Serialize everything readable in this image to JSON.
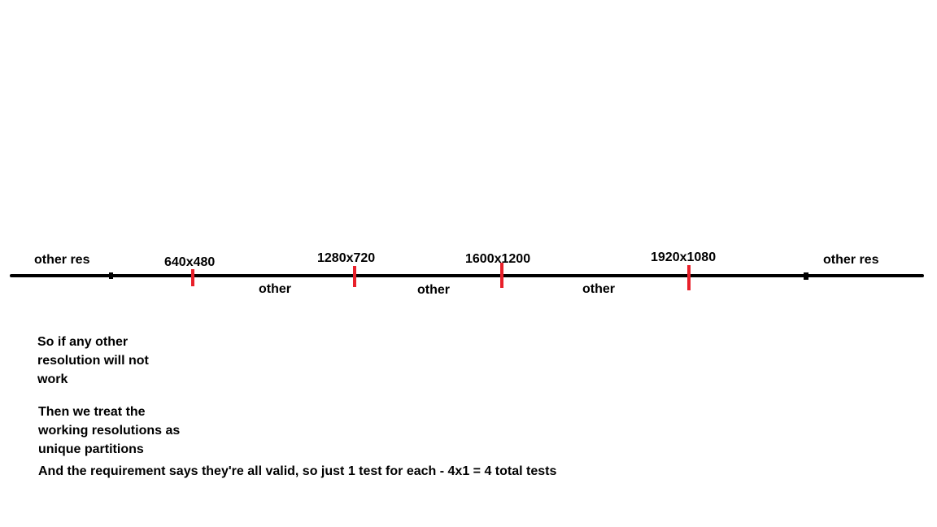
{
  "colors": {
    "line": "#000000",
    "tick": "#e8202a",
    "background": "#ffffff"
  },
  "diagram": {
    "left_label": "other res",
    "right_label": "other res",
    "resolutions": [
      "640x480",
      "1280x720",
      "1600x1200",
      "1920x1080"
    ],
    "gap_labels": [
      "other",
      "other",
      "other"
    ]
  },
  "notes": {
    "note1": "So if any other resolution will not work",
    "note2": "Then we treat the working resolutions as unique partitions",
    "note3": "And the requirement says they're all valid, so just 1 test for each - 4x1 = 4 total tests"
  }
}
